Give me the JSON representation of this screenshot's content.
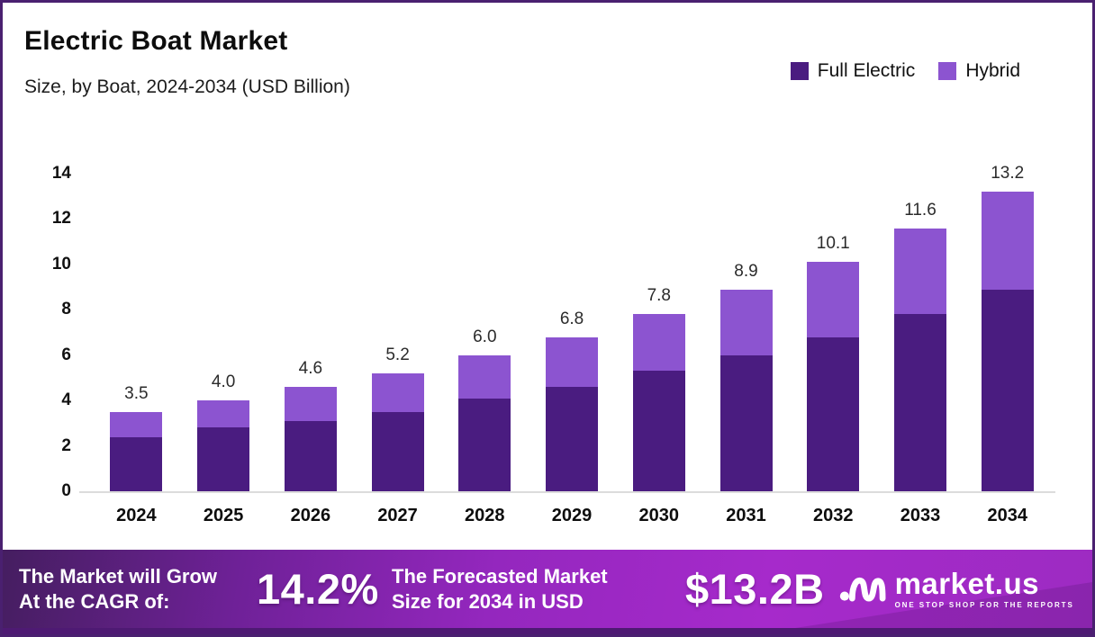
{
  "header": {
    "title": "Electric Boat Market",
    "subtitle": "Size, by Boat, 2024-2034 (USD Billion)"
  },
  "legend": {
    "items": [
      {
        "label": "Full Electric",
        "color": "#4A1C80"
      },
      {
        "label": "Hybrid",
        "color": "#8C54D0"
      }
    ]
  },
  "chart_data": {
    "type": "bar",
    "stacked": true,
    "title": "Electric Boat Market",
    "subtitle": "Size, by Boat, 2024-2034 (USD Billion)",
    "xlabel": "",
    "ylabel": "",
    "categories": [
      "2024",
      "2025",
      "2026",
      "2027",
      "2028",
      "2029",
      "2030",
      "2031",
      "2032",
      "2033",
      "2034"
    ],
    "series": [
      {
        "name": "Full Electric",
        "color": "#4A1C80",
        "values": [
          2.4,
          2.8,
          3.1,
          3.5,
          4.1,
          4.6,
          5.3,
          6.0,
          6.8,
          7.8,
          8.9
        ]
      },
      {
        "name": "Hybrid",
        "color": "#8C54D0",
        "values": [
          1.1,
          1.2,
          1.5,
          1.7,
          1.9,
          2.2,
          2.5,
          2.9,
          3.3,
          3.8,
          4.3
        ]
      }
    ],
    "totals": [
      3.5,
      4.0,
      4.6,
      5.2,
      6.0,
      6.8,
      7.8,
      8.9,
      10.1,
      11.6,
      13.2
    ],
    "total_labels": [
      "3.5",
      "4.0",
      "4.6",
      "5.2",
      "6.0",
      "6.8",
      "7.8",
      "8.9",
      "10.1",
      "11.6",
      "13.2"
    ],
    "y_ticks": [
      14,
      12,
      10,
      8,
      6,
      4,
      2,
      0
    ],
    "ylim": [
      0,
      14
    ],
    "grid": false,
    "legend_position": "top-right"
  },
  "footer": {
    "cagr_text_line1": "The Market will Grow",
    "cagr_text_line2": "At the CAGR of:",
    "cagr_value": "14.2%",
    "forecast_text_line1": "The Forecasted Market",
    "forecast_text_line2": "Size for 2034 in USD",
    "forecast_value": "$13.2B",
    "logo_text": "market.us",
    "logo_tagline": "ONE STOP SHOP FOR THE REPORTS"
  },
  "colors": {
    "full_electric": "#4A1C80",
    "hybrid": "#8C54D0",
    "frame_border": "#4A2070",
    "banner_gradient_start": "#451E60",
    "banner_gradient_end": "#A62ACB",
    "banner_strip": "#4E1A73",
    "baseline": "#DCDCDC"
  }
}
